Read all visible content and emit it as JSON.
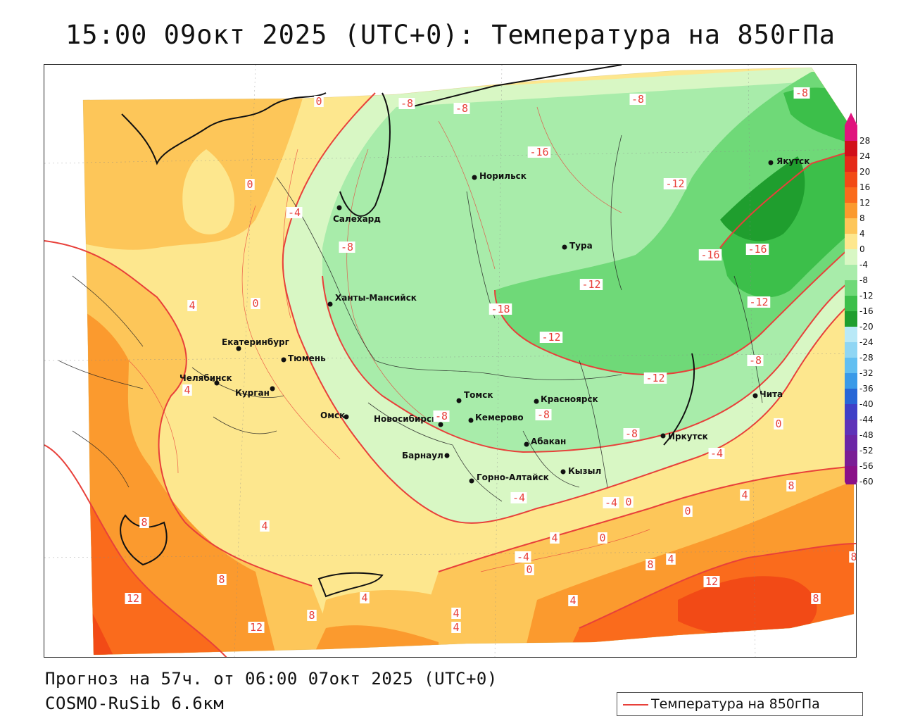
{
  "title": "15:00 09окт 2025 (UTC+0): Температура на 850гПа",
  "forecast_line": "Прогноз на 57ч. от 06:00 07окт 2025 (UTC+0)",
  "model_line": "COSMO-RuSib 6.6км",
  "legend": {
    "label": "Температура на 850гПа",
    "line_color": "#e8403a"
  },
  "color_scale": {
    "labels": [
      "28",
      "24",
      "20",
      "16",
      "12",
      "8",
      "4",
      "0",
      "-4",
      "-8",
      "-12",
      "-16",
      "-20",
      "-24",
      "-28",
      "-32",
      "-36",
      "-40",
      "-44",
      "-48",
      "-52",
      "-56",
      "-60"
    ],
    "colors": [
      "#e0137d",
      "#d10f1a",
      "#e52a18",
      "#f24a16",
      "#fa6b1c",
      "#fb9a2e",
      "#fdc659",
      "#fde78e",
      "#d8f7c4",
      "#a8ecaa",
      "#6fd978",
      "#3cbf4a",
      "#1f9e2e",
      "#b9e9f7",
      "#8fd6f4",
      "#62bff1",
      "#3a9ae8",
      "#2766d6",
      "#3e3fc7",
      "#5e32b8",
      "#6b25a6",
      "#7a1d95",
      "#8a1088"
    ]
  },
  "cities": [
    {
      "name": "Норильск",
      "icon": "city-dot"
    },
    {
      "name": "Салехард",
      "icon": "city-dot"
    },
    {
      "name": "Якутск",
      "icon": "city-dot"
    },
    {
      "name": "Тура",
      "icon": "city-dot"
    },
    {
      "name": "Ханты-Мансийск",
      "icon": "city-dot"
    },
    {
      "name": "Екатеринбург",
      "icon": "city-dot"
    },
    {
      "name": "Тюмень",
      "icon": "city-dot"
    },
    {
      "name": "Челябинск",
      "icon": "city-dot"
    },
    {
      "name": "Курган",
      "icon": "city-dot"
    },
    {
      "name": "Омск",
      "icon": "city-dot"
    },
    {
      "name": "Новосибирск",
      "icon": "city-dot"
    },
    {
      "name": "Томск",
      "icon": "city-dot"
    },
    {
      "name": "Кемерово",
      "icon": "city-dot"
    },
    {
      "name": "Красноярск",
      "icon": "city-dot"
    },
    {
      "name": "Абакан",
      "icon": "city-dot"
    },
    {
      "name": "Барнаул",
      "icon": "city-dot"
    },
    {
      "name": "Горно-Алтайск",
      "icon": "city-dot"
    },
    {
      "name": "Кызыл",
      "icon": "city-dot"
    },
    {
      "name": "Иркутск",
      "icon": "city-dot"
    },
    {
      "name": "Чита",
      "icon": "city-dot"
    }
  ],
  "isotherm_labels": [
    "0",
    "-8",
    "-8",
    "-8",
    "-8",
    "-16",
    "0",
    "-4",
    "-12",
    "-8",
    "-16",
    "-16",
    "-12",
    "4",
    "0",
    "-12",
    "-18",
    "-12",
    "4",
    "-12",
    "-8",
    "-8",
    "-8",
    "-8",
    "0",
    "-4",
    "8",
    "4",
    "-4",
    "-4",
    "0",
    "0",
    "4",
    "8",
    "4",
    "-4",
    "0",
    "0",
    "8",
    "4",
    "12",
    "8",
    "12",
    "8",
    "4",
    "4",
    "8",
    "12",
    "4",
    "8",
    "4"
  ]
}
